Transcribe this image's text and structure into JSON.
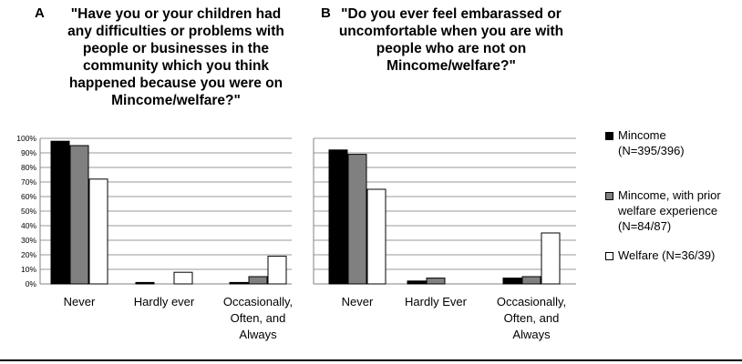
{
  "panels": {
    "a": {
      "letter": "A",
      "title": "\"Have you or your children had\nany difficulties or problems with\npeople or businesses in the\ncommunity which you think\nhappened because you were on\nMincome/welfare?\""
    },
    "b": {
      "letter": "B",
      "title": "\"Do you ever feel embarassed or\nuncomfortable when you are with\npeople who are not on\nMincome/welfare?\""
    }
  },
  "legend": [
    {
      "label": "Mincome\n(N=395/396)",
      "color": "#000000"
    },
    {
      "label": "Mincome, with prior\nwelfare experience\n(N=84/87)",
      "color": "#808080"
    },
    {
      "label": "Welfare (N=36/39)",
      "color": "#ffffff"
    }
  ],
  "chart_data": [
    {
      "type": "bar",
      "title": "\"Have you or your children had any difficulties or problems with people or businesses in the community which you think happened because you were on Mincome/welfare?\"",
      "categories": [
        "Never",
        "Hardly ever",
        "Occasionally,\nOften, and\nAlways"
      ],
      "yticks": [
        "0%",
        "10%",
        "20%",
        "30%",
        "40%",
        "50%",
        "60%",
        "70%",
        "80%",
        "90%",
        "100%"
      ],
      "ylim": [
        0,
        100
      ],
      "grid": true,
      "series": [
        {
          "name": "Mincome (N=395/396)",
          "color": "#000000",
          "values": [
            98,
            1,
            1
          ]
        },
        {
          "name": "Mincome, with prior welfare experience (N=84/87)",
          "color": "#808080",
          "values": [
            95,
            0,
            5
          ]
        },
        {
          "name": "Welfare (N=36/39)",
          "color": "#ffffff",
          "values": [
            72,
            8,
            19
          ]
        }
      ]
    },
    {
      "type": "bar",
      "title": "\"Do you ever feel embarassed or uncomfortable when you are with people who are not on Mincome/welfare?\"",
      "categories": [
        "Never",
        "Hardly Ever",
        "Occasionally,\nOften, and\nAlways"
      ],
      "ylim": [
        0,
        100
      ],
      "grid": true,
      "series": [
        {
          "name": "Mincome (N=395/396)",
          "color": "#000000",
          "values": [
            92,
            2,
            4
          ]
        },
        {
          "name": "Mincome, with prior welfare experience (N=84/87)",
          "color": "#808080",
          "values": [
            89,
            4,
            5
          ]
        },
        {
          "name": "Welfare (N=36/39)",
          "color": "#ffffff",
          "values": [
            65,
            0,
            35
          ]
        }
      ]
    }
  ]
}
